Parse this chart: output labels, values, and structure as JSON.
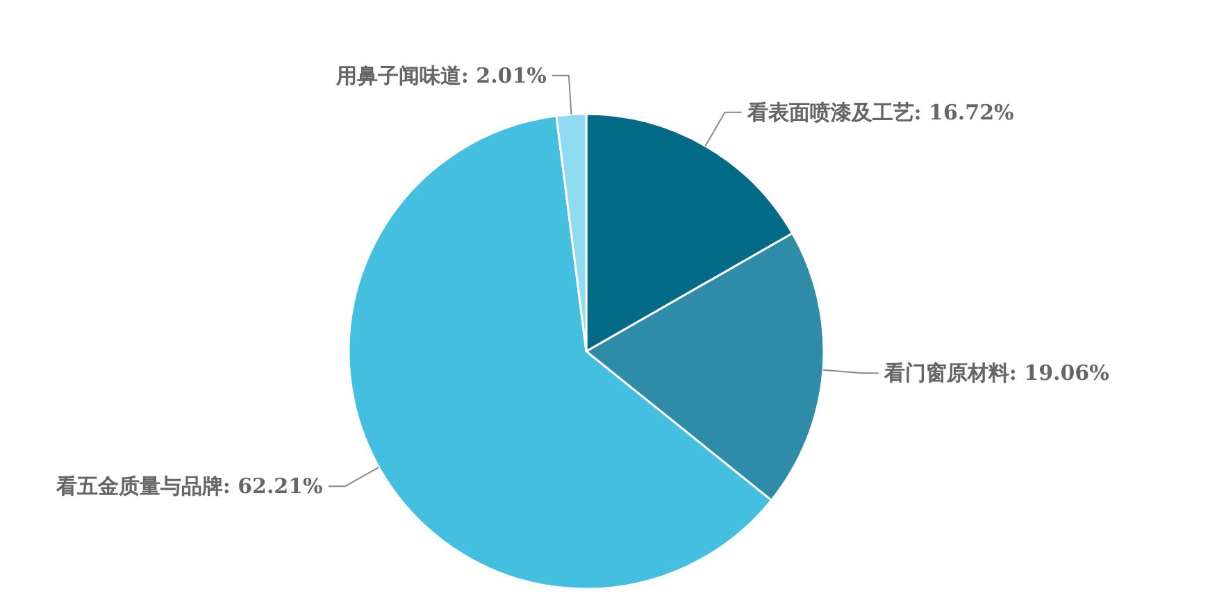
{
  "chart_data": {
    "type": "pie",
    "categories": [
      "看表面喷漆及工艺",
      "看门窗原材料",
      "看五金质量与品牌",
      "用鼻子闻味道"
    ],
    "values": [
      16.72,
      19.06,
      62.21,
      2.01
    ],
    "colors": [
      "#036a87",
      "#2e8ca8",
      "#45bfe0",
      "#8fdcf2"
    ],
    "value_labels": [
      ": 16.72%",
      ": 19.06%",
      ": 62.21%",
      ": 2.01%"
    ]
  }
}
